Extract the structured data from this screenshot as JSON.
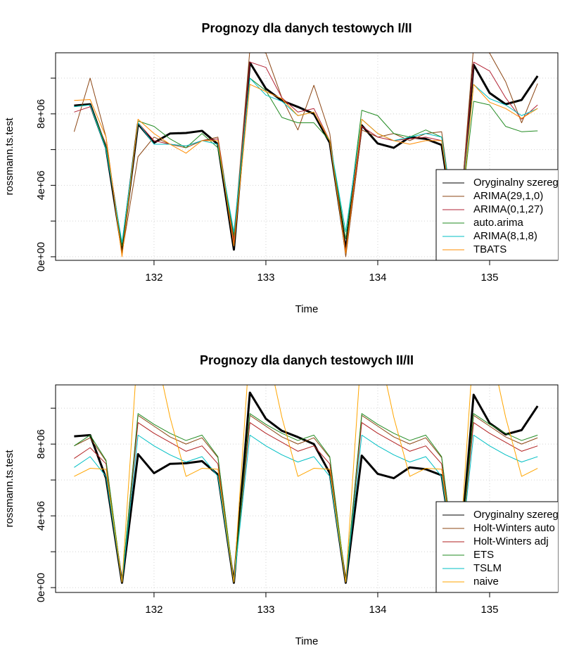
{
  "chart_data": [
    {
      "type": "line",
      "title": "Prognozy dla danych testowych I/II",
      "xlabel": "Time",
      "ylabel": "rossmann.ts.test",
      "x": [
        131.286,
        131.429,
        131.571,
        131.714,
        131.857,
        132,
        132.143,
        132.286,
        132.429,
        132.571,
        132.714,
        132.857,
        133,
        133.143,
        133.286,
        133.429,
        133.571,
        133.714,
        133.857,
        134,
        134.143,
        134.286,
        134.429,
        134.571,
        134.714,
        134.857,
        135,
        135.143,
        135.286,
        135.429
      ],
      "xlim": [
        131.12,
        135.61
      ],
      "xticks": [
        132,
        133,
        134,
        135
      ],
      "ylim": [
        -200000,
        11420000
      ],
      "yticks": [
        {
          "value": 0,
          "label": "0e+00"
        },
        {
          "value": 2000000,
          "label": null
        },
        {
          "value": 4000000,
          "label": "4e+06"
        },
        {
          "value": 6000000,
          "label": null
        },
        {
          "value": 8000000,
          "label": "8e+06"
        },
        {
          "value": 10000000,
          "label": null
        }
      ],
      "grid": true,
      "legend": "bottomright",
      "series": [
        {
          "name": "Oryginalny szereg",
          "color": "#000000",
          "linewidth": 3,
          "values": [
            8460000,
            8540000,
            6100000,
            400000,
            7440000,
            6380000,
            6900000,
            6930000,
            7050000,
            6300000,
            400000,
            10870000,
            9410000,
            8740000,
            8390000,
            8000000,
            6380000,
            400000,
            7360000,
            6340000,
            6100000,
            6700000,
            6600000,
            6260000,
            400000,
            10750000,
            9170000,
            8540000,
            8780000,
            10120000
          ]
        },
        {
          "name": "ARIMA(29,1,0)",
          "color": "#8B4513",
          "linewidth": 1,
          "values": [
            7000000,
            10000000,
            6700000,
            200000,
            5600000,
            6700000,
            6300000,
            6100000,
            6500000,
            6700000,
            1000000,
            11600000,
            11400000,
            8900000,
            7100000,
            9600000,
            6900000,
            0,
            7100000,
            6700000,
            6900000,
            6500000,
            6900000,
            7000000,
            500000,
            11800000,
            11400000,
            9800000,
            7500000,
            9700000
          ]
        },
        {
          "name": "ARIMA(0,1,27)",
          "color": "#B22234",
          "linewidth": 1,
          "values": [
            8100000,
            8400000,
            6300000,
            600000,
            7500000,
            6500000,
            6300000,
            6200000,
            6500000,
            6600000,
            800000,
            10900000,
            10600000,
            8900000,
            8100000,
            8300000,
            6500000,
            300000,
            7300000,
            6700000,
            6500000,
            6600000,
            6700000,
            6500000,
            500000,
            10900000,
            10400000,
            8900000,
            7700000,
            8500000
          ]
        },
        {
          "name": "auto.arima",
          "color": "#228B22",
          "linewidth": 1,
          "values": [
            8400000,
            8500000,
            6200000,
            600000,
            7600000,
            7300000,
            6600000,
            6100000,
            6900000,
            6100000,
            1200000,
            10000000,
            9300000,
            7800000,
            7500000,
            7500000,
            6500000,
            1000000,
            8200000,
            7900000,
            6900000,
            6700000,
            7100000,
            6700000,
            800000,
            8700000,
            8500000,
            7300000,
            7000000,
            7050000
          ]
        },
        {
          "name": "ARIMA(8,1,8)",
          "color": "#00BFC4",
          "linewidth": 1,
          "values": [
            8400000,
            8500000,
            6000000,
            800000,
            7500000,
            6300000,
            6300000,
            6200000,
            6500000,
            6300000,
            1400000,
            10000000,
            9050000,
            8700000,
            7900000,
            8100000,
            6500000,
            1400000,
            7700000,
            6900000,
            6500000,
            6700000,
            6900000,
            6700000,
            1000000,
            9650000,
            8850000,
            8500000,
            7900000,
            8300000
          ]
        },
        {
          "name": "TBATS",
          "color": "#FF8C00",
          "linewidth": 1,
          "values": [
            8750000,
            8800000,
            6700000,
            0,
            7700000,
            6900000,
            6300000,
            5800000,
            6500000,
            6500000,
            600000,
            9650000,
            9250000,
            8850000,
            7900000,
            8100000,
            6500000,
            200000,
            7700000,
            6900000,
            6500000,
            6300000,
            6500000,
            6500000,
            400000,
            9650000,
            8650000,
            8300000,
            7750000,
            8300000
          ]
        }
      ]
    },
    {
      "type": "line",
      "title": "Prognozy dla danych testowych II/II",
      "xlabel": "Time",
      "ylabel": "rossmann.ts.test",
      "x": [
        131.286,
        131.429,
        131.571,
        131.714,
        131.857,
        132,
        132.143,
        132.286,
        132.429,
        132.571,
        132.714,
        132.857,
        133,
        133.143,
        133.286,
        133.429,
        133.571,
        133.714,
        133.857,
        134,
        134.143,
        134.286,
        134.429,
        134.571,
        134.714,
        134.857,
        135,
        135.143,
        135.286,
        135.429
      ],
      "xlim": [
        131.12,
        135.61
      ],
      "xticks": [
        132,
        133,
        134,
        135
      ],
      "ylim": [
        -270000,
        11300000
      ],
      "yticks": [
        {
          "value": 0,
          "label": "0e+00"
        },
        {
          "value": 2000000,
          "label": null
        },
        {
          "value": 4000000,
          "label": "4e+06"
        },
        {
          "value": 6000000,
          "label": null
        },
        {
          "value": 8000000,
          "label": "8e+06"
        },
        {
          "value": 10000000,
          "label": null
        }
      ],
      "grid": true,
      "legend": "bottomright",
      "series": [
        {
          "name": "Oryginalny szereg",
          "color": "#000000",
          "linewidth": 3,
          "values": [
            8430000,
            8500000,
            6100000,
            270000,
            7440000,
            6380000,
            6900000,
            6930000,
            7050000,
            6300000,
            270000,
            10870000,
            9410000,
            8740000,
            8390000,
            8000000,
            6380000,
            270000,
            7360000,
            6340000,
            6100000,
            6700000,
            6600000,
            6260000,
            270000,
            10750000,
            9170000,
            8540000,
            8780000,
            10120000
          ]
        },
        {
          "name": "Holt-Winters auto",
          "color": "#8B4513",
          "linewidth": 1,
          "values": [
            7900000,
            8350000,
            7050000,
            300000,
            9600000,
            9000000,
            8400000,
            8000000,
            8350000,
            7250000,
            300000,
            9600000,
            9000000,
            8400000,
            8000000,
            8350000,
            7250000,
            300000,
            9600000,
            9000000,
            8400000,
            8000000,
            8350000,
            7250000,
            300000,
            9600000,
            9000000,
            8400000,
            8000000,
            8350000
          ]
        },
        {
          "name": "Holt-Winters adj",
          "color": "#B22222",
          "linewidth": 1,
          "values": [
            7200000,
            7800000,
            6900000,
            300000,
            9200000,
            8600000,
            8100000,
            7600000,
            7900000,
            6900000,
            300000,
            9200000,
            8600000,
            8100000,
            7600000,
            7900000,
            6900000,
            300000,
            9200000,
            8600000,
            8100000,
            7600000,
            7900000,
            6900000,
            300000,
            9200000,
            8600000,
            8100000,
            7600000,
            7900000
          ]
        },
        {
          "name": "ETS",
          "color": "#228B22",
          "linewidth": 1,
          "values": [
            7900000,
            8500000,
            7100000,
            300000,
            9700000,
            9100000,
            8600000,
            8200000,
            8500000,
            7300000,
            300000,
            9700000,
            9100000,
            8600000,
            8200000,
            8500000,
            7300000,
            300000,
            9700000,
            9100000,
            8600000,
            8200000,
            8500000,
            7300000,
            300000,
            9700000,
            9100000,
            8600000,
            8200000,
            8500000
          ]
        },
        {
          "name": "TSLM",
          "color": "#00BFC4",
          "linewidth": 1,
          "values": [
            6700000,
            7300000,
            6200000,
            300000,
            8500000,
            7900000,
            7400000,
            7000000,
            7300000,
            6200000,
            300000,
            8500000,
            7900000,
            7400000,
            7000000,
            7300000,
            6200000,
            300000,
            8500000,
            7900000,
            7400000,
            7000000,
            7300000,
            6200000,
            300000,
            8500000,
            7900000,
            7400000,
            7000000,
            7300000
          ]
        },
        {
          "name": "naive",
          "color": "#FFA500",
          "linewidth": 1,
          "values": [
            6200000,
            6650000,
            6600000,
            300000,
            13600000,
            13600000,
            9500000,
            6200000,
            6650000,
            6600000,
            300000,
            13600000,
            13600000,
            9500000,
            6200000,
            6650000,
            6600000,
            300000,
            13600000,
            13600000,
            9500000,
            6200000,
            6650000,
            6600000,
            300000,
            13600000,
            13600000,
            9500000,
            6200000,
            6650000
          ]
        }
      ]
    }
  ]
}
